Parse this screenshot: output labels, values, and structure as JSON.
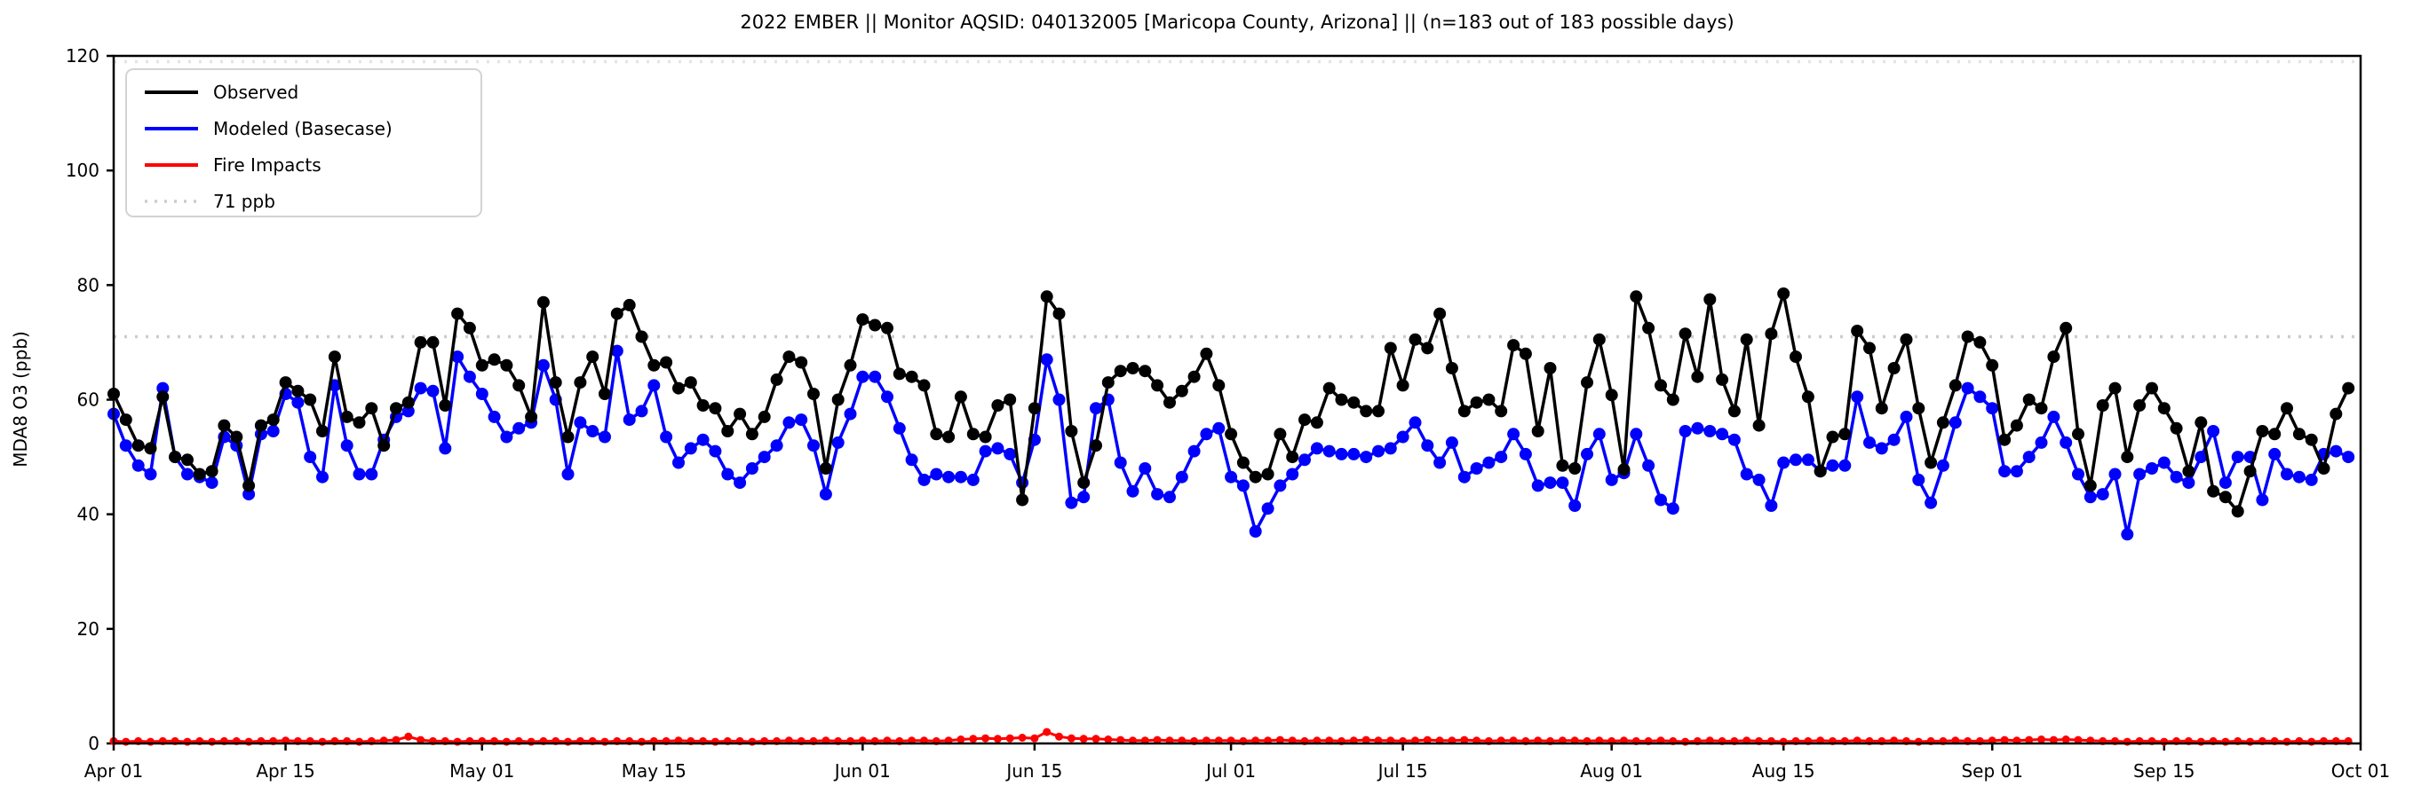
{
  "chart": {
    "title": "2022 EMBER || Monitor AQSID: 040132005 [Maricopa County, Arizona] || (n=183 out of 183 possible days)",
    "y_axis_label": "MDA8 O3 (ppb)",
    "legend": {
      "observed": "Observed",
      "modeled": "Modeled (Basecase)",
      "fire": "Fire Impacts",
      "threshold": "71 ppb"
    },
    "colors": {
      "observed": "#000000",
      "modeled": "#0000ff",
      "fire": "#ff0000",
      "threshold_line": "#cccccc",
      "top_dotted_line": "#e4e4e4",
      "axis": "#000000",
      "legend_border": "#d3d3d3"
    }
  },
  "chart_data": {
    "type": "line",
    "title": "2022 EMBER || Monitor AQSID: 040132005 [Maricopa County, Arizona] || (n=183 out of 183 possible days)",
    "xlabel": "",
    "ylabel": "MDA8 O3 (ppb)",
    "ylim": [
      0,
      120
    ],
    "y_ticks": [
      "0",
      "20",
      "40",
      "60",
      "80",
      "100",
      "120"
    ],
    "y_tick_values": [
      0,
      20,
      40,
      60,
      80,
      100,
      120
    ],
    "x_tick_labels": [
      "Apr 01",
      "Apr 15",
      "May 01",
      "May 15",
      "Jun 01",
      "Jun 15",
      "Jul 01",
      "Jul 15",
      "Aug 01",
      "Aug 15",
      "Sep 01",
      "Sep 15",
      "Oct 01"
    ],
    "x_tick_days": [
      0,
      14,
      30,
      44,
      61,
      75,
      91,
      105,
      122,
      136,
      153,
      167,
      183
    ],
    "x_unit": "day index from Apr 01, 2022 (daily values, 183 days Apr 01 - Sep 30)",
    "grid": false,
    "legend_position": "upper left",
    "reference_lines": [
      {
        "label": "71 ppb",
        "value": 71,
        "style": "dotted",
        "color": "#cccccc"
      },
      {
        "label": "",
        "value": 119,
        "style": "dotted",
        "color": "#e4e4e4"
      }
    ],
    "series": [
      {
        "name": "Observed",
        "color": "#000000",
        "marker": "circle",
        "values": [
          61,
          56.5,
          52,
          51.5,
          60.5,
          50,
          49.5,
          47,
          47.5,
          55.5,
          53.5,
          45,
          55.5,
          56.5,
          63,
          61.5,
          60,
          54.5,
          67.5,
          57,
          56,
          58.5,
          52,
          58.5,
          59.5,
          70,
          70,
          59,
          75,
          72.5,
          66,
          67,
          66,
          62.5,
          57,
          77,
          63,
          53.5,
          63,
          67.5,
          61,
          75,
          76.5,
          71,
          66,
          66.5,
          62,
          63,
          59,
          58.5,
          54.5,
          57.5,
          54,
          57,
          63.5,
          67.5,
          66.5,
          61,
          48,
          60,
          66,
          74,
          73,
          72.5,
          64.5,
          64,
          62.5,
          54,
          53.5,
          60.5,
          54,
          53.5,
          59,
          60,
          42.5,
          58.5,
          78,
          75,
          54.5,
          45.5,
          52,
          63,
          65,
          65.5,
          65,
          62.5,
          59.5,
          61.5,
          64,
          68,
          62.5,
          54,
          49,
          46.5,
          47,
          54,
          50,
          56.5,
          56,
          62,
          60,
          59.5,
          58,
          58,
          69,
          62.5,
          70.5,
          69,
          75,
          65.5,
          58,
          59.5,
          60,
          58,
          69.5,
          68,
          54.5,
          65.5,
          48.5,
          48,
          63,
          70.5,
          60.8,
          47.8,
          78,
          72.5,
          62.5,
          60,
          71.5,
          64,
          77.5,
          63.5,
          58,
          70.5,
          55.5,
          71.5,
          78.5,
          67.5,
          60.5,
          47.5,
          53.5,
          54,
          72,
          69,
          58.5,
          65.5,
          70.5,
          58.5,
          49,
          56,
          62.5,
          71,
          70,
          66,
          53,
          55.5,
          60,
          58.5,
          67.5,
          72.5,
          54,
          45,
          59,
          62,
          50,
          59,
          62,
          58.5,
          55,
          47.5,
          56,
          44,
          43,
          40.5,
          47.5,
          54.5,
          54,
          58.5,
          54,
          53,
          48,
          57.5,
          62
        ]
      },
      {
        "name": "Modeled (Basecase)",
        "color": "#0000ff",
        "marker": "circle",
        "values": [
          57.5,
          52,
          48.5,
          47,
          62,
          50,
          47,
          46.5,
          45.5,
          53.5,
          52,
          43.5,
          54,
          54.5,
          61,
          59.5,
          50,
          46.5,
          62.5,
          52,
          47,
          47,
          53,
          57,
          58,
          62,
          61.5,
          51.5,
          67.5,
          64,
          61,
          57,
          53.5,
          55,
          56,
          66,
          60,
          47,
          56,
          54.5,
          53.5,
          68.5,
          56.5,
          58,
          62.5,
          53.5,
          49,
          51.5,
          53,
          51,
          47,
          45.5,
          48,
          50,
          52,
          56,
          56.5,
          52,
          43.5,
          52.5,
          57.5,
          64,
          64,
          60.5,
          55,
          49.5,
          46,
          47,
          46.5,
          46.5,
          46,
          51,
          51.5,
          50.5,
          45.5,
          53,
          67,
          60,
          42,
          43,
          58.5,
          60,
          49,
          44,
          48,
          43.5,
          43,
          46.5,
          51,
          54,
          55,
          46.5,
          45,
          37,
          41,
          45,
          47,
          49.5,
          51.5,
          51,
          50.5,
          50.5,
          50,
          51,
          51.5,
          53.5,
          56,
          52,
          49,
          52.5,
          46.5,
          48,
          49,
          50,
          54,
          50.5,
          45,
          45.5,
          45.5,
          41.5,
          50.5,
          54,
          46,
          47.2,
          54,
          48.5,
          42.5,
          41,
          54.5,
          55,
          54.5,
          54,
          53,
          47,
          46,
          41.5,
          49,
          49.5,
          49.5,
          47.5,
          48.5,
          48.5,
          60.5,
          52.5,
          51.5,
          53,
          57,
          46,
          42,
          48.5,
          56,
          62,
          60.5,
          58.5,
          47.5,
          47.5,
          50,
          52.5,
          57,
          52.5,
          47,
          43,
          43.5,
          47,
          36.5,
          47,
          48,
          49,
          46.5,
          45.5,
          50,
          54.5,
          45.5,
          50,
          50,
          42.5,
          50.5,
          47,
          46.5,
          46,
          50.5,
          51,
          50
        ]
      },
      {
        "name": "Fire Impacts",
        "color": "#ff0000",
        "marker": "circle",
        "values": [
          0.4,
          0.3,
          0.4,
          0.3,
          0.4,
          0.4,
          0.3,
          0.4,
          0.3,
          0.4,
          0.4,
          0.3,
          0.4,
          0.4,
          0.5,
          0.4,
          0.4,
          0.3,
          0.4,
          0.4,
          0.3,
          0.4,
          0.5,
          0.6,
          1.2,
          0.6,
          0.4,
          0.4,
          0.3,
          0.4,
          0.4,
          0.4,
          0.3,
          0.4,
          0.3,
          0.4,
          0.4,
          0.3,
          0.4,
          0.4,
          0.3,
          0.4,
          0.4,
          0.3,
          0.4,
          0.4,
          0.5,
          0.4,
          0.4,
          0.3,
          0.4,
          0.4,
          0.3,
          0.4,
          0.4,
          0.5,
          0.4,
          0.4,
          0.5,
          0.4,
          0.4,
          0.5,
          0.4,
          0.5,
          0.4,
          0.5,
          0.5,
          0.4,
          0.5,
          0.7,
          0.8,
          0.9,
          0.8,
          0.9,
          1.0,
          0.9,
          2.0,
          1.2,
          0.9,
          0.8,
          0.8,
          0.7,
          0.6,
          0.5,
          0.5,
          0.6,
          0.5,
          0.5,
          0.4,
          0.5,
          0.5,
          0.5,
          0.4,
          0.5,
          0.5,
          0.6,
          0.5,
          0.4,
          0.5,
          0.5,
          0.4,
          0.5,
          0.6,
          0.5,
          0.5,
          0.4,
          0.5,
          0.6,
          0.5,
          0.5,
          0.6,
          0.5,
          0.4,
          0.5,
          0.5,
          0.4,
          0.5,
          0.4,
          0.5,
          0.5,
          0.4,
          0.5,
          0.4,
          0.5,
          0.4,
          0.4,
          0.5,
          0.4,
          0.3,
          0.4,
          0.5,
          0.4,
          0.4,
          0.5,
          0.4,
          0.4,
          0.3,
          0.4,
          0.4,
          0.5,
          0.4,
          0.4,
          0.5,
          0.4,
          0.4,
          0.5,
          0.4,
          0.3,
          0.4,
          0.4,
          0.5,
          0.4,
          0.4,
          0.5,
          0.6,
          0.5,
          0.6,
          0.7,
          0.6,
          0.7,
          0.6,
          0.5,
          0.4,
          0.4,
          0.3,
          0.4,
          0.4,
          0.3,
          0.4,
          0.4,
          0.3,
          0.4,
          0.3,
          0.4,
          0.3,
          0.4,
          0.4,
          0.3,
          0.4,
          0.3,
          0.4,
          0.4,
          0.4
        ]
      }
    ]
  }
}
